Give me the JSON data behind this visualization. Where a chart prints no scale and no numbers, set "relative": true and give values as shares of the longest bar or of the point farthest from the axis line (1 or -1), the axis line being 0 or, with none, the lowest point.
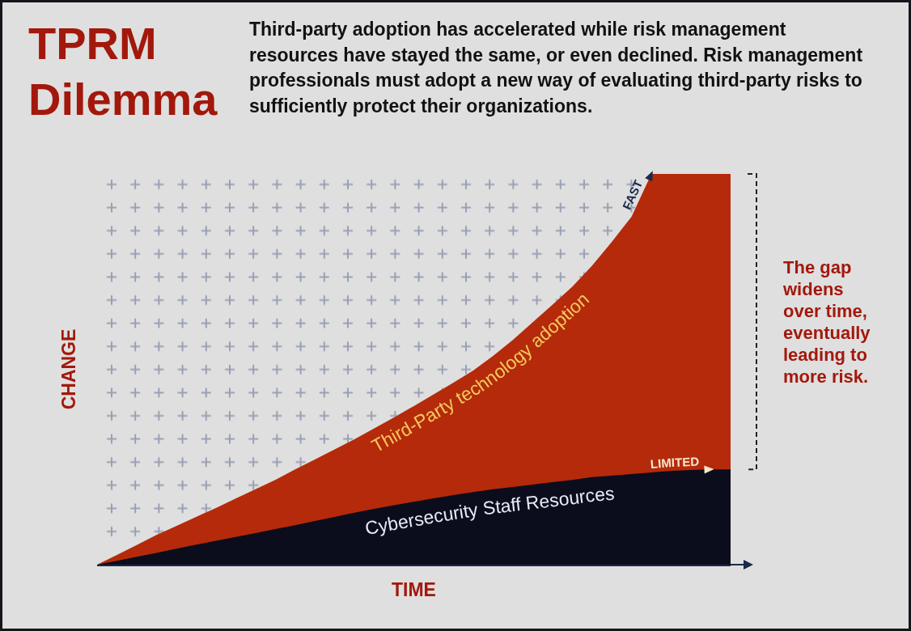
{
  "chart_data": {
    "type": "area",
    "title": "TPRM Dilemma",
    "subtitle": "Third-party adoption has accelerated while risk management resources have stayed the same, or even declined. Risk management professionals must adopt a new way of evaluating third-party risks to sufficiently protect their organizations.",
    "xlabel": "TIME",
    "ylabel": "CHANGE",
    "annotations": [
      "FAST",
      "LIMITED",
      "The gap widens over time, eventually leading to more risk."
    ],
    "relative": true,
    "tick_labels": false,
    "categories": [
      null,
      null,
      null,
      null,
      null,
      null,
      null,
      null,
      null,
      null,
      null,
      null,
      null,
      null,
      null,
      null,
      null,
      null,
      null,
      null,
      null,
      null,
      null,
      null,
      null,
      null,
      null,
      null,
      null,
      null,
      null,
      null,
      null
    ],
    "series": [
      {
        "name": "Third-Party technology adoption",
        "color": "#b52a0a",
        "values": [
          0,
          0.025,
          0.05,
          0.076,
          0.099,
          0.122,
          0.145,
          0.169,
          0.193,
          0.217,
          0.244,
          0.269,
          0.295,
          0.321,
          0.349,
          0.377,
          0.406,
          0.436,
          0.466,
          0.497,
          0.534,
          0.575,
          0.62,
          0.665,
          0.711,
          0.765,
          0.826,
          0.891,
          1,
          1,
          1,
          1,
          1
        ]
      },
      {
        "name": "Cybersecurity Staff Resources",
        "color": "#0b0d1c",
        "values": [
          0,
          0.01,
          0.02,
          0.03,
          0.041,
          0.051,
          0.061,
          0.071,
          0.081,
          0.091,
          0.101,
          0.112,
          0.122,
          0.133,
          0.143,
          0.152,
          0.161,
          0.17,
          0.178,
          0.186,
          0.193,
          0.199,
          0.205,
          0.211,
          0.217,
          0.224,
          0.228,
          0.232,
          0.236,
          0.24,
          0.242,
          0.244,
          0.244
        ]
      }
    ]
  }
}
